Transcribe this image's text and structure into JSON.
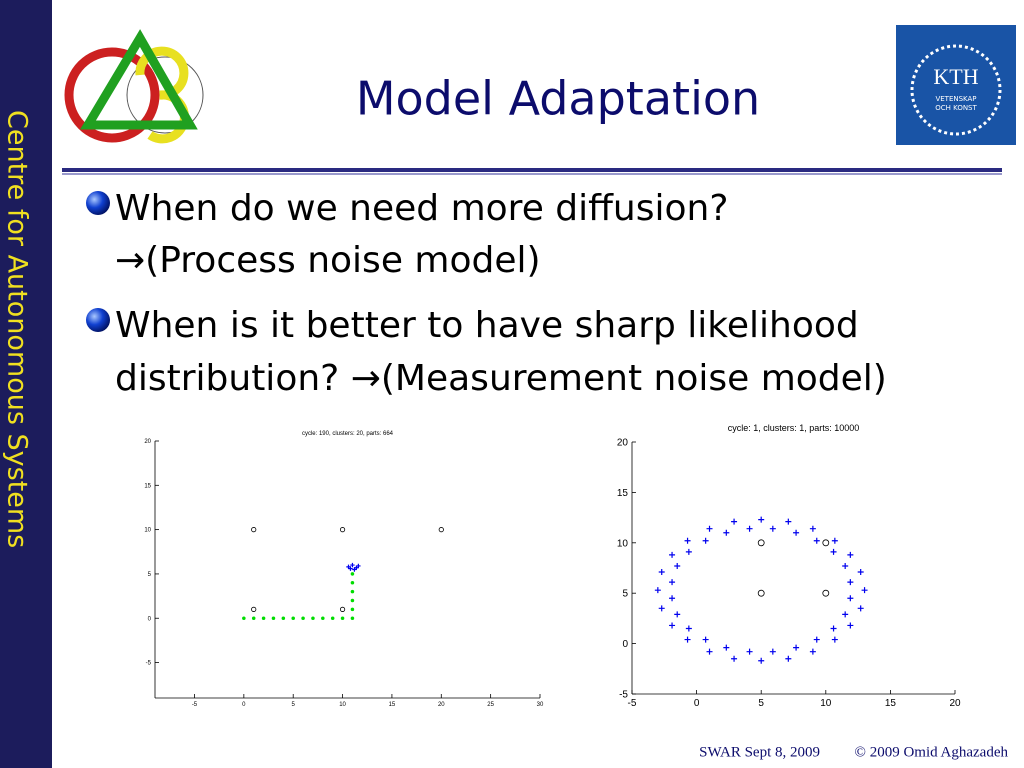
{
  "slide": {
    "side_label": "Centre for Autonomous Systems",
    "title": "Model Adaptation",
    "logo": {
      "name": "KTH",
      "motto_1": "VETENSKAP",
      "motto_2": "OCH KONST"
    },
    "bullets": [
      {
        "lines": [
          "When do we need more diffusion?",
          "→(Process noise model)"
        ]
      },
      {
        "lines": [
          "When is it better to have sharp likelihood",
          "distribution? →(Measurement noise model)"
        ]
      }
    ],
    "footer": {
      "event": "SWAR Sept 8, 2009",
      "copyright": "© 2009 Omid Aghazadeh"
    }
  },
  "chart_data": [
    {
      "type": "scatter",
      "title": "cycle: 190, clusters: 20, parts: 664",
      "xlim": [
        -9,
        30
      ],
      "ylim": [
        -9,
        20
      ],
      "xticks": [
        -5,
        0,
        5,
        10,
        15,
        20,
        25,
        30
      ],
      "yticks": [
        -5,
        0,
        5,
        10,
        15,
        20
      ],
      "series": [
        {
          "color": "#00dd00",
          "marker": "dot",
          "x": [
            0,
            1,
            2,
            3,
            4,
            5,
            6,
            7,
            8,
            9,
            10,
            11,
            11,
            11,
            11,
            11,
            11
          ],
          "values": [
            0,
            0,
            0,
            0,
            0,
            0,
            0,
            0,
            0,
            0,
            0,
            0,
            1,
            2,
            3,
            4,
            5
          ]
        },
        {
          "color": "#0000ee",
          "marker": "plus",
          "x": [
            10.6,
            11,
            11.4,
            11.2,
            10.8,
            11.6
          ],
          "values": [
            5.8,
            6,
            5.7,
            5.5,
            5.6,
            5.9
          ]
        },
        {
          "color": "#000000",
          "marker": "circle",
          "x": [
            1,
            10,
            20,
            1,
            10
          ],
          "values": [
            10,
            10,
            10,
            1,
            1
          ]
        }
      ]
    },
    {
      "type": "scatter",
      "title": "cycle: 1, clusters: 1, parts: 10000",
      "xlim": [
        -5,
        20
      ],
      "ylim": [
        -5,
        20
      ],
      "xticks": [
        -5,
        0,
        5,
        10,
        15,
        20
      ],
      "yticks": [
        -5,
        0,
        5,
        10,
        15,
        20
      ],
      "series": [
        {
          "color": "#0000ee",
          "marker": "plus",
          "x": [
            13,
            12.7,
            11.9,
            10.7,
            9,
            7.1,
            5,
            2.9,
            1,
            -0.7,
            -1.9,
            -2.7,
            -3,
            -2.7,
            -1.9,
            -0.7,
            1,
            2.9,
            5,
            7.1,
            9,
            10.7,
            11.9,
            12.7,
            11.9,
            11.5,
            10.6,
            9.3,
            7.7,
            5.9,
            4.1,
            2.3,
            0.7,
            -0.6,
            -1.5,
            -1.9,
            -1.9,
            -1.5,
            -0.6,
            0.7,
            2.3,
            4.1,
            5.9,
            7.7,
            9.3,
            10.6,
            11.5,
            11.9
          ],
          "values": [
            5.3,
            7.1,
            8.8,
            10.2,
            11.4,
            12.1,
            12.3,
            12.1,
            11.4,
            10.2,
            8.8,
            7.1,
            5.3,
            3.5,
            1.8,
            0.4,
            -0.8,
            -1.5,
            -1.7,
            -1.5,
            -0.8,
            0.4,
            1.8,
            3.5,
            6.1,
            7.7,
            9.1,
            10.2,
            11,
            11.4,
            11.4,
            11,
            10.2,
            9.1,
            7.7,
            6.1,
            4.5,
            2.9,
            1.5,
            0.4,
            -0.4,
            -0.8,
            -0.8,
            -0.4,
            0.4,
            1.5,
            2.9,
            4.5
          ]
        },
        {
          "color": "#000000",
          "marker": "circle",
          "x": [
            5,
            10,
            5,
            10
          ],
          "values": [
            10,
            10,
            5,
            5
          ]
        }
      ]
    }
  ]
}
